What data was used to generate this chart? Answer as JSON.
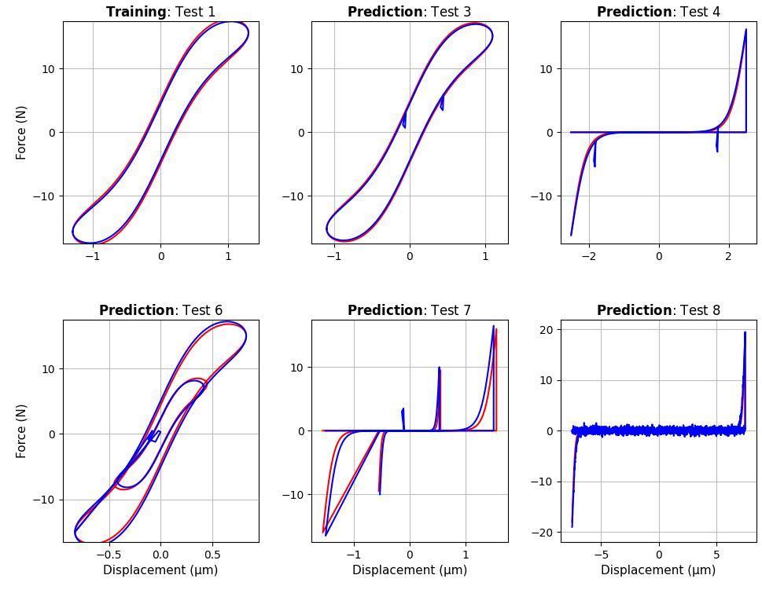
{
  "titles": [
    [
      "Training",
      "Test 1"
    ],
    [
      "Prediction",
      "Test 3"
    ],
    [
      "Prediction",
      "Test 4"
    ],
    [
      "Prediction",
      "Test 6"
    ],
    [
      "Prediction",
      "Test 7"
    ],
    [
      "Prediction",
      "Test 8"
    ]
  ],
  "xlabels": [
    "Displacement (μm)",
    "Displacement (μm)",
    "Displacement (μm)"
  ],
  "ylabels": [
    "Force (N)",
    "Force (N)"
  ],
  "red_color": "#FF0000",
  "blue_color": "#0000FF",
  "background_color": "#FFFFFF",
  "grid_color": "#BEBEBE",
  "linewidth": 1.5,
  "subplot_configs": [
    {
      "xlim": [
        -1.45,
        1.45
      ],
      "ylim": [
        -17.5,
        17.5
      ],
      "xticks": [
        -1,
        0,
        1
      ],
      "yticks": [
        -10,
        0,
        10
      ]
    },
    {
      "xlim": [
        -1.3,
        1.3
      ],
      "ylim": [
        -17.5,
        17.5
      ],
      "xticks": [
        -1,
        0,
        1
      ],
      "yticks": [
        -10,
        0,
        10
      ]
    },
    {
      "xlim": [
        -2.8,
        2.8
      ],
      "ylim": [
        -17.5,
        17.5
      ],
      "xticks": [
        -2,
        0,
        2
      ],
      "yticks": [
        -10,
        0,
        10
      ]
    },
    {
      "xlim": [
        -0.95,
        0.95
      ],
      "ylim": [
        -16.5,
        17.5
      ],
      "xticks": [
        -0.5,
        0,
        0.5
      ],
      "yticks": [
        -10,
        0,
        10
      ]
    },
    {
      "xlim": [
        -1.75,
        1.75
      ],
      "ylim": [
        -17.5,
        17.5
      ],
      "xticks": [
        -1,
        0,
        1
      ],
      "yticks": [
        -10,
        0,
        10
      ]
    },
    {
      "xlim": [
        -8.5,
        8.5
      ],
      "ylim": [
        -22,
        22
      ],
      "xticks": [
        -5,
        0,
        5
      ],
      "yticks": [
        -20,
        -10,
        0,
        10,
        20
      ]
    }
  ]
}
